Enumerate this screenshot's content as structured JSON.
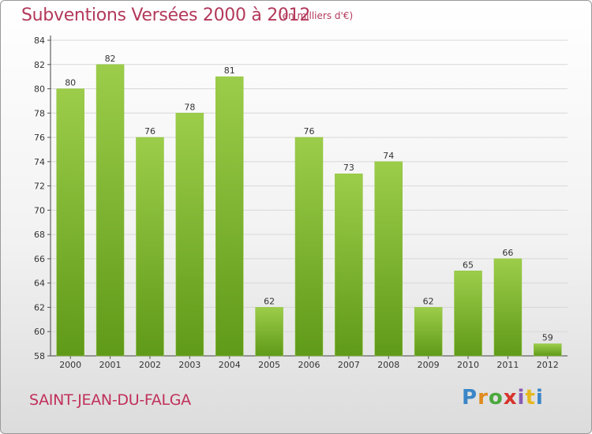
{
  "header": {
    "title": "Subventions Versées 2000 à 2012",
    "subtitle": "(en milliers d'€)"
  },
  "footer": {
    "commune": "SAINT-JEAN-DU-FALGA",
    "brand": {
      "letters": [
        "P",
        "r",
        "o",
        "x",
        "i",
        "t",
        "i"
      ],
      "colors": [
        "#3a86c8",
        "#e08a1e",
        "#4aa83c",
        "#d6342c",
        "#8a5bb5",
        "#e6b81f",
        "#3a86c8"
      ]
    }
  },
  "chart_data": {
    "type": "bar",
    "title": "Subventions Versées 2000 à 2012",
    "subtitle": "(en milliers d'€)",
    "categories": [
      "2000",
      "2001",
      "2002",
      "2003",
      "2004",
      "2005",
      "2006",
      "2007",
      "2008",
      "2009",
      "2010",
      "2011",
      "2012"
    ],
    "values": [
      80,
      82,
      76,
      78,
      81,
      62,
      76,
      73,
      74,
      62,
      65,
      66,
      59
    ],
    "ylim": [
      58,
      84
    ],
    "yticks": [
      58,
      60,
      62,
      64,
      66,
      68,
      70,
      72,
      74,
      76,
      78,
      80,
      82,
      84
    ],
    "grid": true,
    "colors": {
      "bar_top": "#9ccd4a",
      "bar_bottom": "#5f9a18",
      "grid": "#d8d8d8"
    }
  }
}
